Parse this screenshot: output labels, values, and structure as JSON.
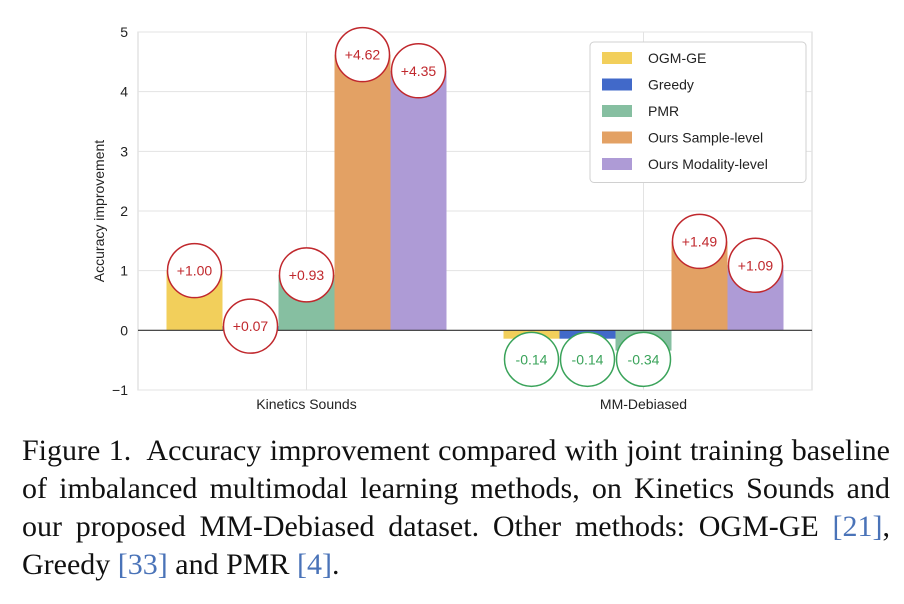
{
  "chart_data": {
    "type": "bar",
    "categories": [
      "Kinetics Sounds",
      "MM-Debiased"
    ],
    "series": [
      {
        "name": "OGM-GE",
        "color": "#f2cf5b",
        "values": [
          1.0,
          -0.14
        ],
        "labels": [
          "+1.00",
          "-0.14"
        ]
      },
      {
        "name": "Greedy",
        "color": "#4169c9",
        "values": [
          0.07,
          -0.14
        ],
        "labels": [
          "+0.07",
          "-0.14"
        ]
      },
      {
        "name": "PMR",
        "color": "#86bfa1",
        "values": [
          0.93,
          -0.34
        ],
        "labels": [
          "+0.93",
          "-0.34"
        ]
      },
      {
        "name": "Ours Sample-level",
        "color": "#e3a164",
        "values": [
          4.62,
          1.49
        ],
        "labels": [
          "+4.62",
          "+1.49"
        ]
      },
      {
        "name": "Ours Modality-level",
        "color": "#ae9bd6",
        "values": [
          4.35,
          1.09
        ],
        "labels": [
          "+4.35",
          "+1.09"
        ]
      }
    ],
    "ylabel": "Accuracy improvement",
    "xlabel": "",
    "ylim": [
      -1,
      5
    ],
    "yticks": [
      -1,
      0,
      1,
      2,
      3,
      4,
      5
    ],
    "ytick_labels": [
      "−1",
      "0",
      "1",
      "2",
      "3",
      "4",
      "5"
    ],
    "grid": true,
    "legend_position": "top-right",
    "positive_annotation_color": "#c0282d",
    "negative_annotation_color": "#3aa35a"
  },
  "caption": {
    "label": "Figure 1.",
    "text_before_21": "Accuracy improvement compared with joint training baseline of imbalanced multimodal learning methods, on Kinetics Sounds and our proposed MM-Debiased dataset. Other methods: OGM-GE ",
    "cite_21": "[21]",
    "text_between_21_33": ", Greedy ",
    "cite_33": "[33]",
    "text_between_33_4": " and PMR ",
    "cite_4": "[4]",
    "text_end": "."
  }
}
